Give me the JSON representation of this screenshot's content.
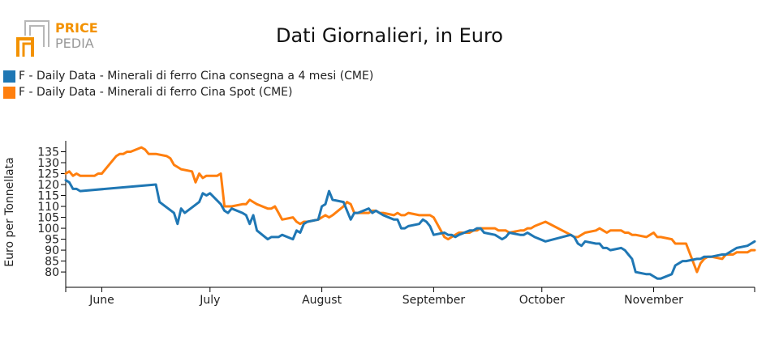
{
  "logo": {
    "line1": "PRICE",
    "line2": "PEDIA",
    "line1_color": "#f39200",
    "line2_color": "#9a9a9a"
  },
  "chart_data": {
    "type": "line",
    "title": "Dati Giornalieri, in Euro",
    "xlabel": "",
    "ylabel": "Euro per Tonnellata",
    "ylim": [
      73,
      140
    ],
    "yticks": [
      80,
      85,
      90,
      95,
      100,
      105,
      110,
      115,
      120,
      125,
      130,
      135
    ],
    "xlim": [
      "2023-05-22",
      "2023-11-29"
    ],
    "xticks": [
      {
        "label": "June",
        "date": "2023-06-01"
      },
      {
        "label": "July",
        "date": "2023-07-01"
      },
      {
        "label": "August",
        "date": "2023-08-01"
      },
      {
        "label": "September",
        "date": "2023-09-01"
      },
      {
        "label": "October",
        "date": "2023-10-01"
      },
      {
        "label": "November",
        "date": "2023-11-01"
      }
    ],
    "grid": false,
    "legend_position": "top-left",
    "series": [
      {
        "name": "F - Daily Data - Minerali di ferro Cina consegna a 4 mesi (CME)",
        "color": "#1f77b4",
        "x": [
          "2023-05-22",
          "2023-05-23",
          "2023-05-24",
          "2023-05-25",
          "2023-05-26",
          "2023-06-16",
          "2023-06-17",
          "2023-06-21",
          "2023-06-22",
          "2023-06-23",
          "2023-06-24",
          "2023-06-28",
          "2023-06-29",
          "2023-06-30",
          "2023-07-01",
          "2023-07-04",
          "2023-07-05",
          "2023-07-06",
          "2023-07-07",
          "2023-07-10",
          "2023-07-11",
          "2023-07-12",
          "2023-07-13",
          "2023-07-14",
          "2023-07-17",
          "2023-07-18",
          "2023-07-19",
          "2023-07-20",
          "2023-07-21",
          "2023-07-24",
          "2023-07-25",
          "2023-07-26",
          "2023-07-27",
          "2023-07-28",
          "2023-07-31",
          "2023-08-01",
          "2023-08-02",
          "2023-08-03",
          "2023-08-04",
          "2023-08-07",
          "2023-08-08",
          "2023-08-09",
          "2023-08-10",
          "2023-08-11",
          "2023-08-14",
          "2023-08-15",
          "2023-08-16",
          "2023-08-17",
          "2023-08-18",
          "2023-08-21",
          "2023-08-22",
          "2023-08-23",
          "2023-08-24",
          "2023-08-25",
          "2023-08-28",
          "2023-08-29",
          "2023-08-30",
          "2023-08-31",
          "2023-09-01",
          "2023-09-04",
          "2023-09-05",
          "2023-09-06",
          "2023-09-07",
          "2023-09-08",
          "2023-09-11",
          "2023-09-12",
          "2023-09-13",
          "2023-09-14",
          "2023-09-15",
          "2023-09-18",
          "2023-09-19",
          "2023-09-20",
          "2023-09-21",
          "2023-09-22",
          "2023-09-25",
          "2023-09-26",
          "2023-09-27",
          "2023-09-28",
          "2023-09-29",
          "2023-10-02",
          "2023-10-09",
          "2023-10-10",
          "2023-10-11",
          "2023-10-12",
          "2023-10-13",
          "2023-10-16",
          "2023-10-17",
          "2023-10-18",
          "2023-10-19",
          "2023-10-20",
          "2023-10-23",
          "2023-10-24",
          "2023-10-25",
          "2023-10-26",
          "2023-10-27",
          "2023-10-30",
          "2023-10-31",
          "2023-11-01",
          "2023-11-02",
          "2023-11-03",
          "2023-11-06",
          "2023-11-07",
          "2023-11-08",
          "2023-11-09",
          "2023-11-10",
          "2023-11-13",
          "2023-11-14",
          "2023-11-15",
          "2023-11-16",
          "2023-11-17",
          "2023-11-20",
          "2023-11-21",
          "2023-11-22",
          "2023-11-23",
          "2023-11-24",
          "2023-11-27",
          "2023-11-28",
          "2023-11-29"
        ],
        "y": [
          122,
          121,
          118,
          118,
          117,
          120,
          112,
          107,
          102,
          109,
          107,
          112,
          116,
          115,
          116,
          111,
          108,
          107,
          109,
          107,
          106,
          102,
          106,
          99,
          95,
          96,
          96,
          96,
          97,
          95,
          99,
          98,
          102,
          103,
          104,
          110,
          111,
          117,
          113,
          112,
          108,
          104,
          107,
          107,
          109,
          107,
          108,
          107,
          106,
          104,
          104,
          100,
          100,
          101,
          102,
          104,
          103,
          101,
          97,
          98,
          97,
          97,
          96,
          97,
          99,
          99,
          100,
          100,
          98,
          97,
          96,
          95,
          96,
          98,
          97,
          97,
          98,
          97,
          96,
          94,
          97,
          96,
          93,
          92,
          94,
          93,
          93,
          91,
          91,
          90,
          91,
          90,
          88,
          86,
          80,
          79,
          79,
          78,
          77,
          77,
          79,
          83,
          84,
          85,
          85,
          86,
          86,
          87,
          87,
          87,
          88,
          88,
          89,
          90,
          91,
          92,
          93,
          94
        ]
      },
      {
        "name": "F - Daily Data - Minerali di ferro Cina Spot (CME)",
        "color": "#ff7f0e",
        "x": [
          "2023-05-22",
          "2023-05-23",
          "2023-05-24",
          "2023-05-25",
          "2023-05-26",
          "2023-05-29",
          "2023-05-30",
          "2023-05-31",
          "2023-06-01",
          "2023-06-02",
          "2023-06-05",
          "2023-06-06",
          "2023-06-07",
          "2023-06-08",
          "2023-06-09",
          "2023-06-12",
          "2023-06-13",
          "2023-06-14",
          "2023-06-15",
          "2023-06-16",
          "2023-06-19",
          "2023-06-20",
          "2023-06-21",
          "2023-06-22",
          "2023-06-23",
          "2023-06-26",
          "2023-06-27",
          "2023-06-28",
          "2023-06-29",
          "2023-06-30",
          "2023-07-03",
          "2023-07-04",
          "2023-07-05",
          "2023-07-06",
          "2023-07-07",
          "2023-07-10",
          "2023-07-11",
          "2023-07-12",
          "2023-07-13",
          "2023-07-14",
          "2023-07-17",
          "2023-07-18",
          "2023-07-19",
          "2023-07-20",
          "2023-07-21",
          "2023-07-24",
          "2023-07-25",
          "2023-07-26",
          "2023-07-27",
          "2023-07-28",
          "2023-07-31",
          "2023-08-01",
          "2023-08-02",
          "2023-08-03",
          "2023-08-04",
          "2023-08-07",
          "2023-08-08",
          "2023-08-09",
          "2023-08-10",
          "2023-08-11",
          "2023-08-14",
          "2023-08-15",
          "2023-08-16",
          "2023-08-17",
          "2023-08-18",
          "2023-08-21",
          "2023-08-22",
          "2023-08-23",
          "2023-08-24",
          "2023-08-25",
          "2023-08-28",
          "2023-08-29",
          "2023-08-30",
          "2023-08-31",
          "2023-09-01",
          "2023-09-04",
          "2023-09-05",
          "2023-09-06",
          "2023-09-07",
          "2023-09-08",
          "2023-09-11",
          "2023-09-12",
          "2023-09-13",
          "2023-09-14",
          "2023-09-15",
          "2023-09-18",
          "2023-09-19",
          "2023-09-20",
          "2023-09-21",
          "2023-09-22",
          "2023-09-25",
          "2023-09-26",
          "2023-09-27",
          "2023-09-28",
          "2023-09-29",
          "2023-10-02",
          "2023-10-09",
          "2023-10-10",
          "2023-10-11",
          "2023-10-12",
          "2023-10-13",
          "2023-10-16",
          "2023-10-17",
          "2023-10-18",
          "2023-10-19",
          "2023-10-20",
          "2023-10-23",
          "2023-10-24",
          "2023-10-25",
          "2023-10-26",
          "2023-10-27",
          "2023-10-30",
          "2023-10-31",
          "2023-11-01",
          "2023-11-02",
          "2023-11-03",
          "2023-11-06",
          "2023-11-07",
          "2023-11-08",
          "2023-11-09",
          "2023-11-10",
          "2023-11-13",
          "2023-11-14",
          "2023-11-15",
          "2023-11-16",
          "2023-11-17",
          "2023-11-20",
          "2023-11-21",
          "2023-11-22",
          "2023-11-23",
          "2023-11-24",
          "2023-11-27",
          "2023-11-28",
          "2023-11-29"
        ],
        "y": [
          125,
          126,
          124,
          125,
          124,
          124,
          124,
          125,
          125,
          127,
          133,
          134,
          134,
          135,
          135,
          137,
          136,
          134,
          134,
          134,
          133,
          132,
          129,
          128,
          127,
          126,
          121,
          125,
          123,
          124,
          124,
          125,
          110,
          110,
          110,
          111,
          111,
          113,
          112,
          111,
          109,
          109,
          110,
          107,
          104,
          105,
          103,
          102,
          103,
          103,
          104,
          105,
          106,
          105,
          106,
          110,
          112,
          111,
          107,
          107,
          107,
          108,
          108,
          107,
          107,
          106,
          107,
          106,
          106,
          107,
          106,
          106,
          106,
          106,
          105,
          96,
          95,
          96,
          97,
          98,
          98,
          99,
          99,
          100,
          100,
          100,
          99,
          99,
          99,
          98,
          99,
          99,
          100,
          100,
          101,
          103,
          97,
          96,
          96,
          97,
          98,
          99,
          100,
          99,
          98,
          99,
          99,
          98,
          98,
          97,
          97,
          96,
          97,
          98,
          96,
          96,
          95,
          93,
          93,
          93,
          93,
          80,
          84,
          86,
          87,
          87,
          86,
          88,
          88,
          88,
          89,
          89,
          90,
          90
        ]
      }
    ]
  }
}
